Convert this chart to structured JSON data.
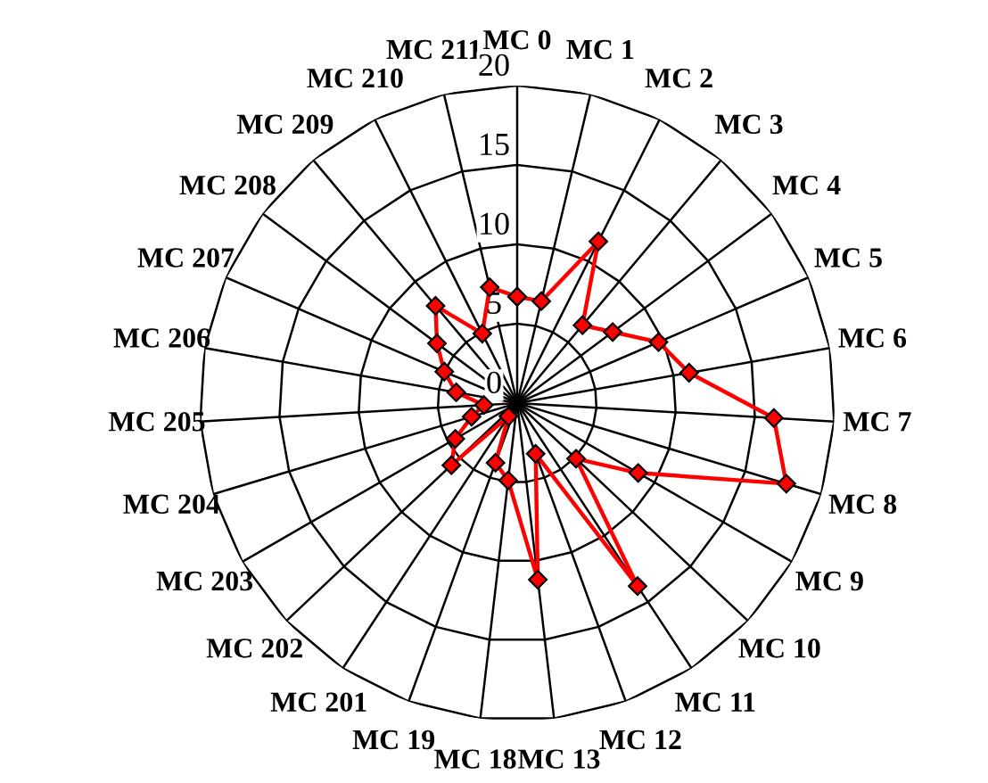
{
  "chart_data": {
    "type": "radar",
    "categories": [
      "MC 0",
      "MC 1",
      "MC 2",
      "MC 3",
      "MC 4",
      "MC 5",
      "MC 6",
      "MC 7",
      "MC 8",
      "MC 9",
      "MC 10",
      "MC 11",
      "MC 12",
      "MC 13",
      "MC 18",
      "MC 19",
      "MC 201",
      "MC 202",
      "MC 203",
      "MC 204",
      "MC 205",
      "MC 206",
      "MC 207",
      "MC 208",
      "MC 209",
      "MC 210",
      "MC 211"
    ],
    "series": [
      {
        "color": "#ff0000",
        "values": [
          6.7,
          6.6,
          11.4,
          6.4,
          7.5,
          9.7,
          11.0,
          16.2,
          17.7,
          8.8,
          5.1,
          13.8,
          3.4,
          11.2,
          4.9,
          4.0,
          1.0,
          5.7,
          4.5,
          3.0,
          2.1,
          3.9,
          5.0,
          6.3,
          8.0,
          4.9,
          7.5
        ]
      }
    ],
    "ylim": [
      0,
      20
    ],
    "yticks": [
      0,
      5,
      10,
      15,
      20
    ],
    "grid": true,
    "marker": "diamond",
    "line_style": "solid"
  }
}
